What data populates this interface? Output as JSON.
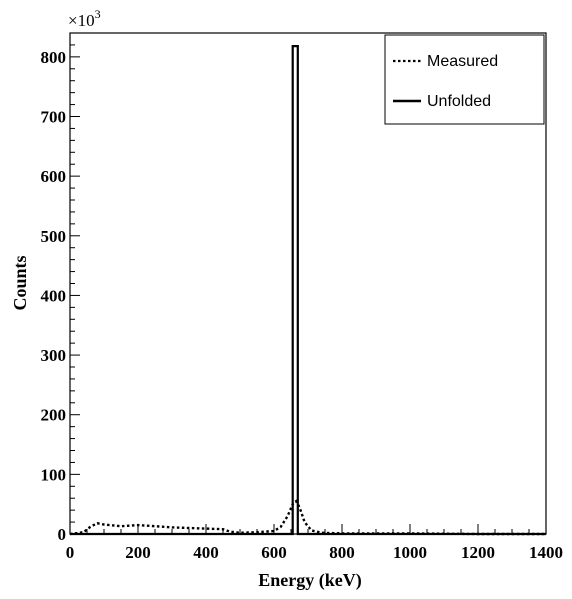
{
  "chart_data": {
    "type": "line",
    "title": "",
    "xlabel": "Energy (keV)",
    "ylabel": "Counts",
    "y_multiplier_label": "×10",
    "y_multiplier_exponent": "3",
    "xlim": [
      0,
      1400
    ],
    "ylim": [
      0,
      840
    ],
    "x_ticks": [
      0,
      200,
      400,
      600,
      800,
      1000,
      1200,
      1400
    ],
    "y_ticks": [
      0,
      100,
      200,
      300,
      400,
      500,
      600,
      700,
      800
    ],
    "grid": false,
    "legend_position": "top-right",
    "series": [
      {
        "name": "Measured",
        "style": "dotted",
        "color": "#000000",
        "x": [
          0,
          40,
          60,
          80,
          100,
          150,
          200,
          250,
          300,
          350,
          400,
          450,
          470,
          500,
          550,
          600,
          620,
          640,
          655,
          665,
          675,
          690,
          710,
          740,
          800,
          1000,
          1200,
          1400
        ],
        "y": [
          0,
          3,
          12,
          18,
          16,
          13,
          15,
          13,
          11,
          10,
          9,
          8,
          4,
          2,
          3,
          5,
          12,
          30,
          50,
          55,
          45,
          20,
          6,
          2,
          1,
          1,
          0,
          0
        ]
      },
      {
        "name": "Unfolded",
        "style": "solid",
        "color": "#000000",
        "x": [
          0,
          655,
          655,
          670,
          670,
          1400
        ],
        "y": [
          0,
          0,
          818,
          818,
          0,
          0
        ]
      }
    ]
  }
}
